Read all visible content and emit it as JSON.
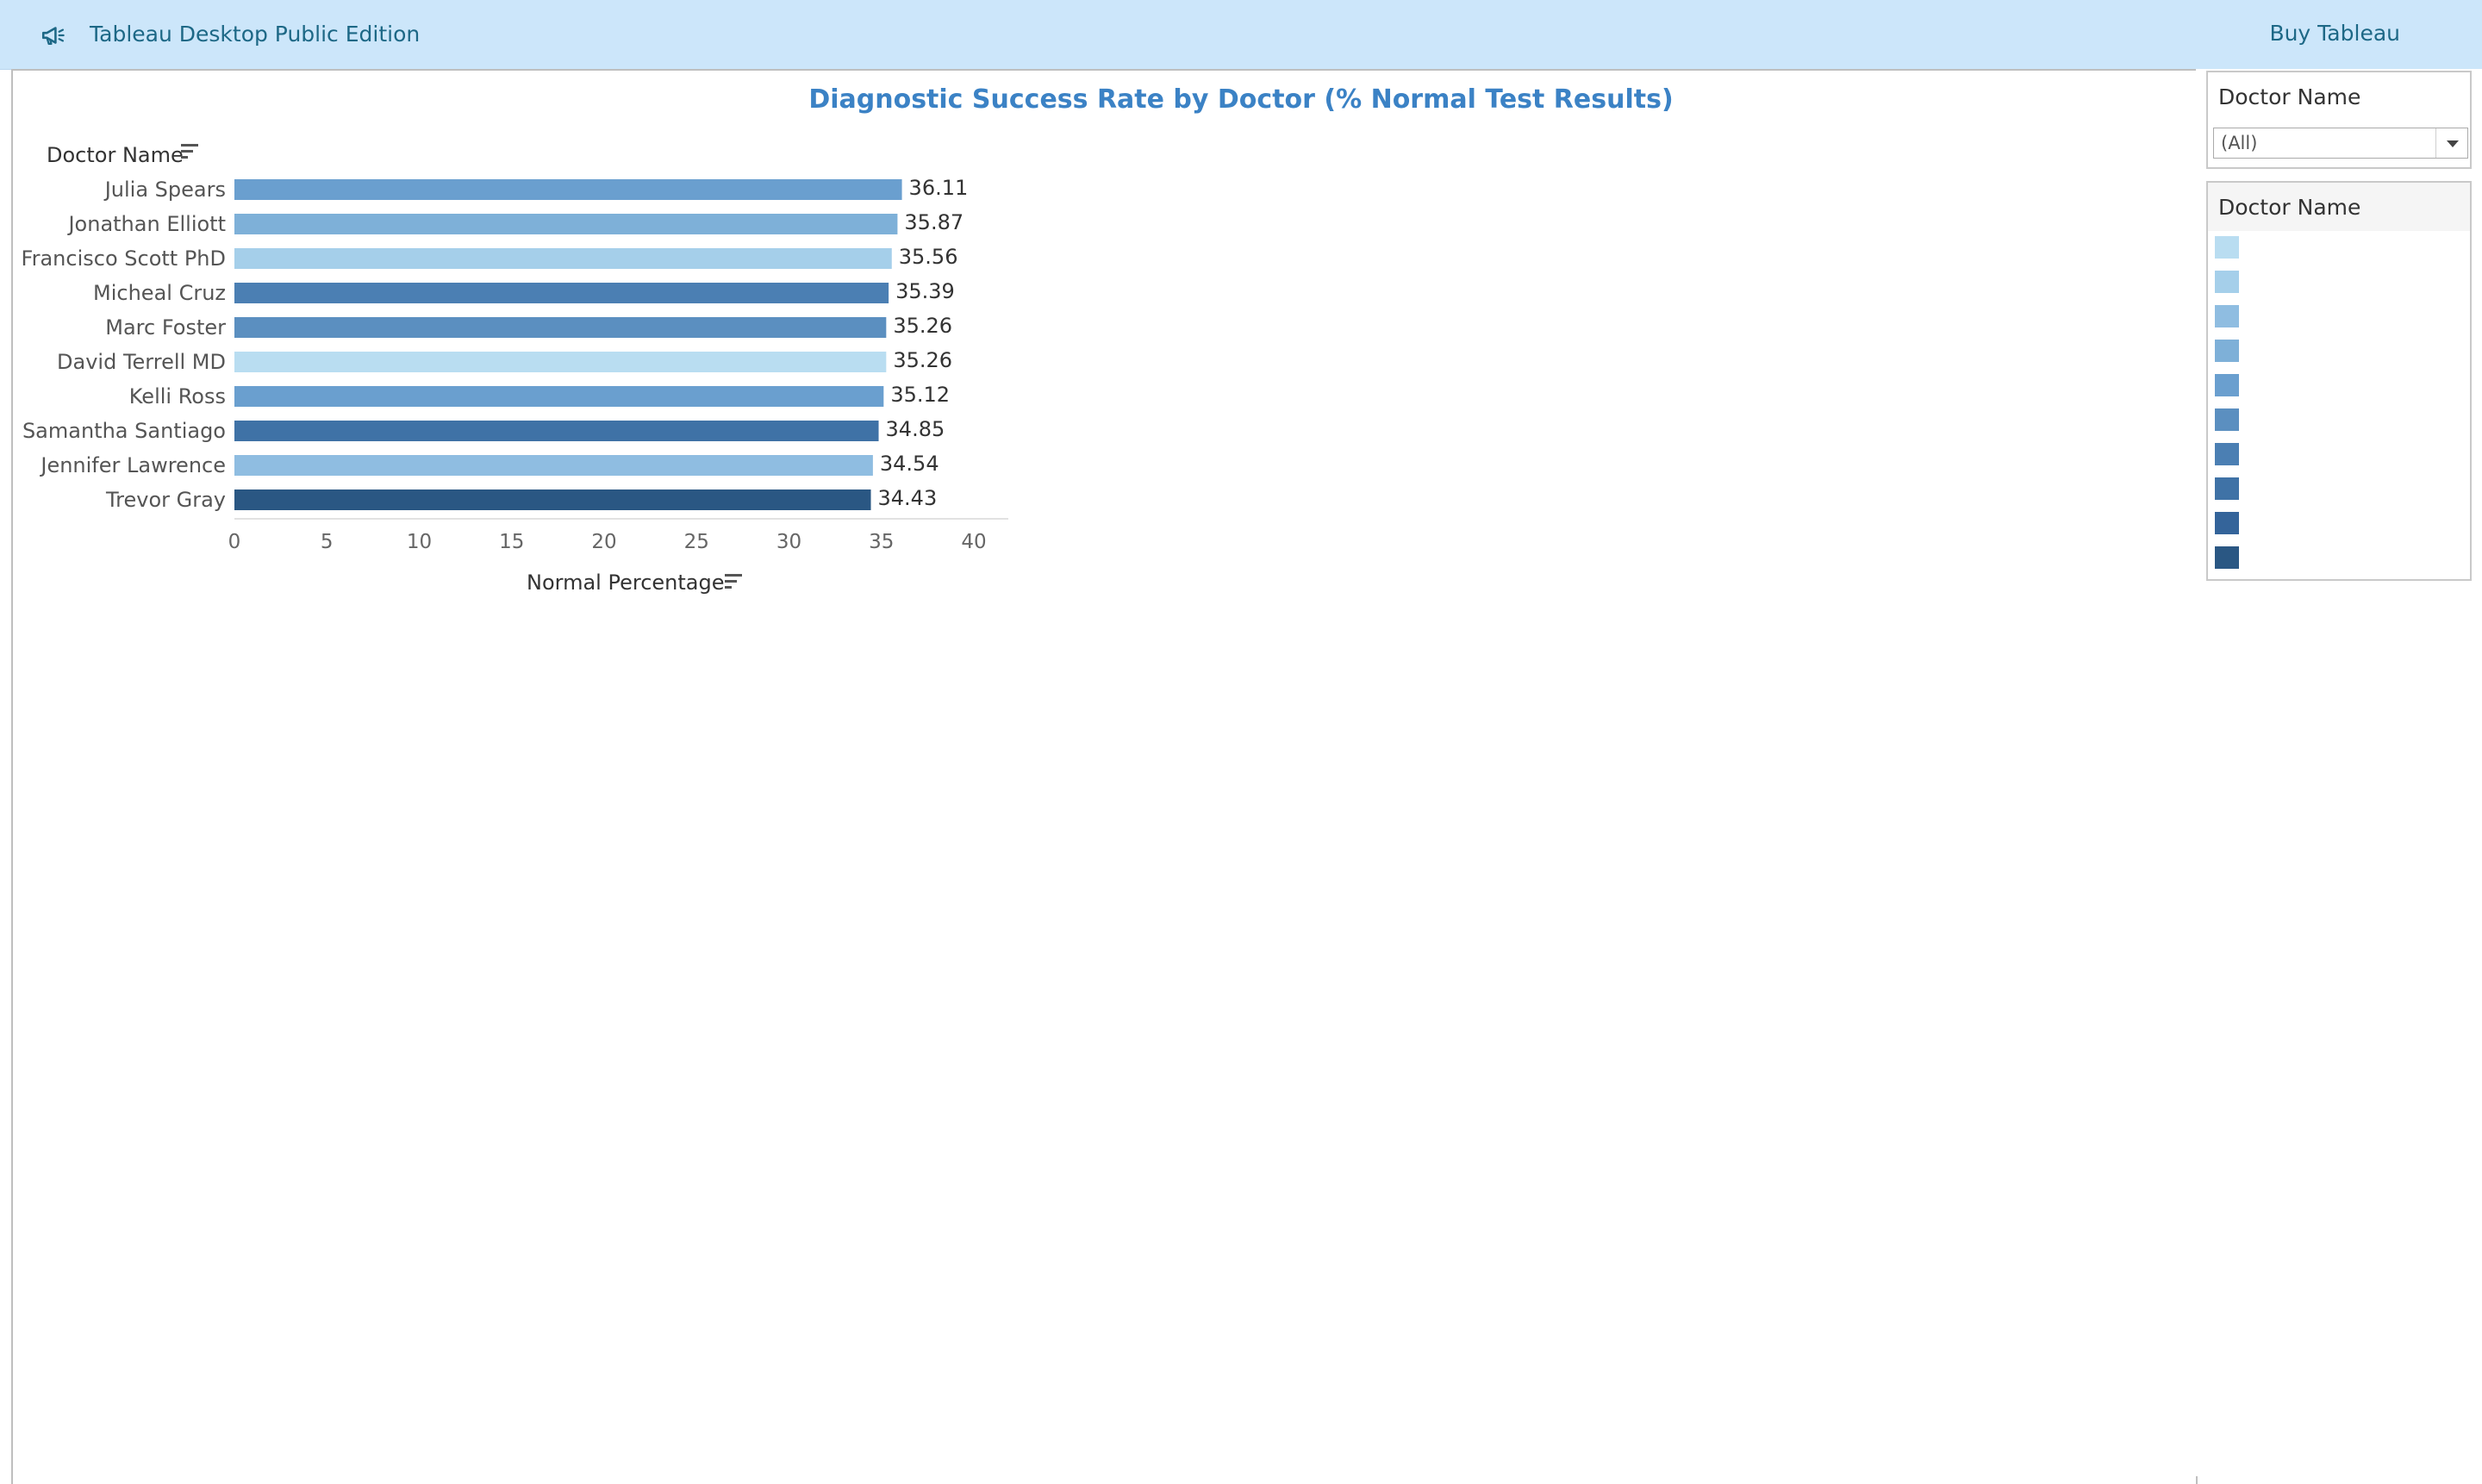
{
  "app": {
    "title": "Tableau Desktop Public Edition",
    "buy_label": "Buy Tableau",
    "announcement_icon": "megaphone-icon"
  },
  "sheet": {
    "title": "Diagnostic Success Rate by Doctor (% Normal Test Results)",
    "row_header": "Doctor Name",
    "column_header": "Normal Percentage",
    "sort_icon": "sort-icon"
  },
  "filter": {
    "title": "Doctor Name",
    "selected": "(All)"
  },
  "legend": {
    "title": "Doctor Name",
    "swatch_colors": [
      "#b9ddf1",
      "#a5cfea",
      "#8fbde1",
      "#7eb0d8",
      "#6a9fcf",
      "#5b8fc0",
      "#4b7fb3",
      "#3f72a6",
      "#34649a",
      "#2a5783"
    ]
  },
  "colors": {
    "title": "#3b82c5",
    "topbar_bg": "#cce6fa",
    "topbar_text": "#1d6886"
  },
  "chart_data": {
    "type": "bar",
    "orientation": "horizontal",
    "title": "Diagnostic Success Rate by Doctor (% Normal Test Results)",
    "ylabel": "Doctor Name",
    "xlabel": "Normal Percentage",
    "categories": [
      "Julia Spears",
      "Jonathan Elliott",
      "Francisco Scott PhD",
      "Micheal Cruz",
      "Marc Foster",
      "David Terrell MD",
      "Kelli Ross",
      "Samantha Santiago",
      "Jennifer Lawrence",
      "Trevor Gray"
    ],
    "values": [
      36.11,
      35.87,
      35.56,
      35.39,
      35.26,
      35.26,
      35.12,
      34.85,
      34.54,
      34.43
    ],
    "value_labels": [
      "36.11",
      "35.87",
      "35.56",
      "35.39",
      "35.26",
      "35.26",
      "35.12",
      "34.85",
      "34.54",
      "34.43"
    ],
    "bar_colors": [
      "#6a9fcf",
      "#7eb0d8",
      "#a5cfea",
      "#4b7fb3",
      "#5b8fc0",
      "#b9ddf1",
      "#6a9fcf",
      "#3f72a6",
      "#8fbde1",
      "#2a5783"
    ],
    "xlim": [
      0,
      40
    ],
    "xticks": [
      0,
      5,
      10,
      15,
      20,
      25,
      30,
      35,
      40
    ],
    "grid": false,
    "legend": "right"
  }
}
